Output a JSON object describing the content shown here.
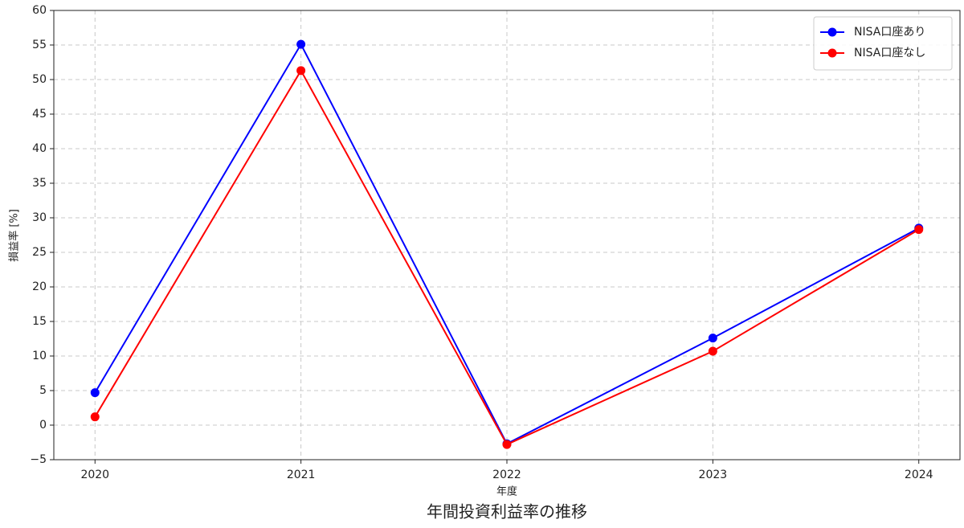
{
  "chart_data": {
    "type": "line",
    "title": "年間投資利益率の推移",
    "x_label": "年度",
    "y_label": "損益率 [%]",
    "categories": [
      "2020",
      "2021",
      "2022",
      "2023",
      "2024"
    ],
    "series": [
      {
        "name": "NISA口座あり",
        "color": "#0000ff",
        "values": [
          4.7,
          55.1,
          -2.7,
          12.6,
          28.5
        ]
      },
      {
        "name": "NISA口座なし",
        "color": "#ff0000",
        "values": [
          1.2,
          51.3,
          -2.8,
          10.7,
          28.3
        ]
      }
    ],
    "ylim": [
      -5,
      60
    ],
    "yticks": [
      {
        "value": -5,
        "label": "−5"
      },
      0,
      5,
      10,
      15,
      20,
      25,
      30,
      35,
      40,
      45,
      50,
      55,
      60
    ],
    "grid": true,
    "legend": "upper right"
  }
}
